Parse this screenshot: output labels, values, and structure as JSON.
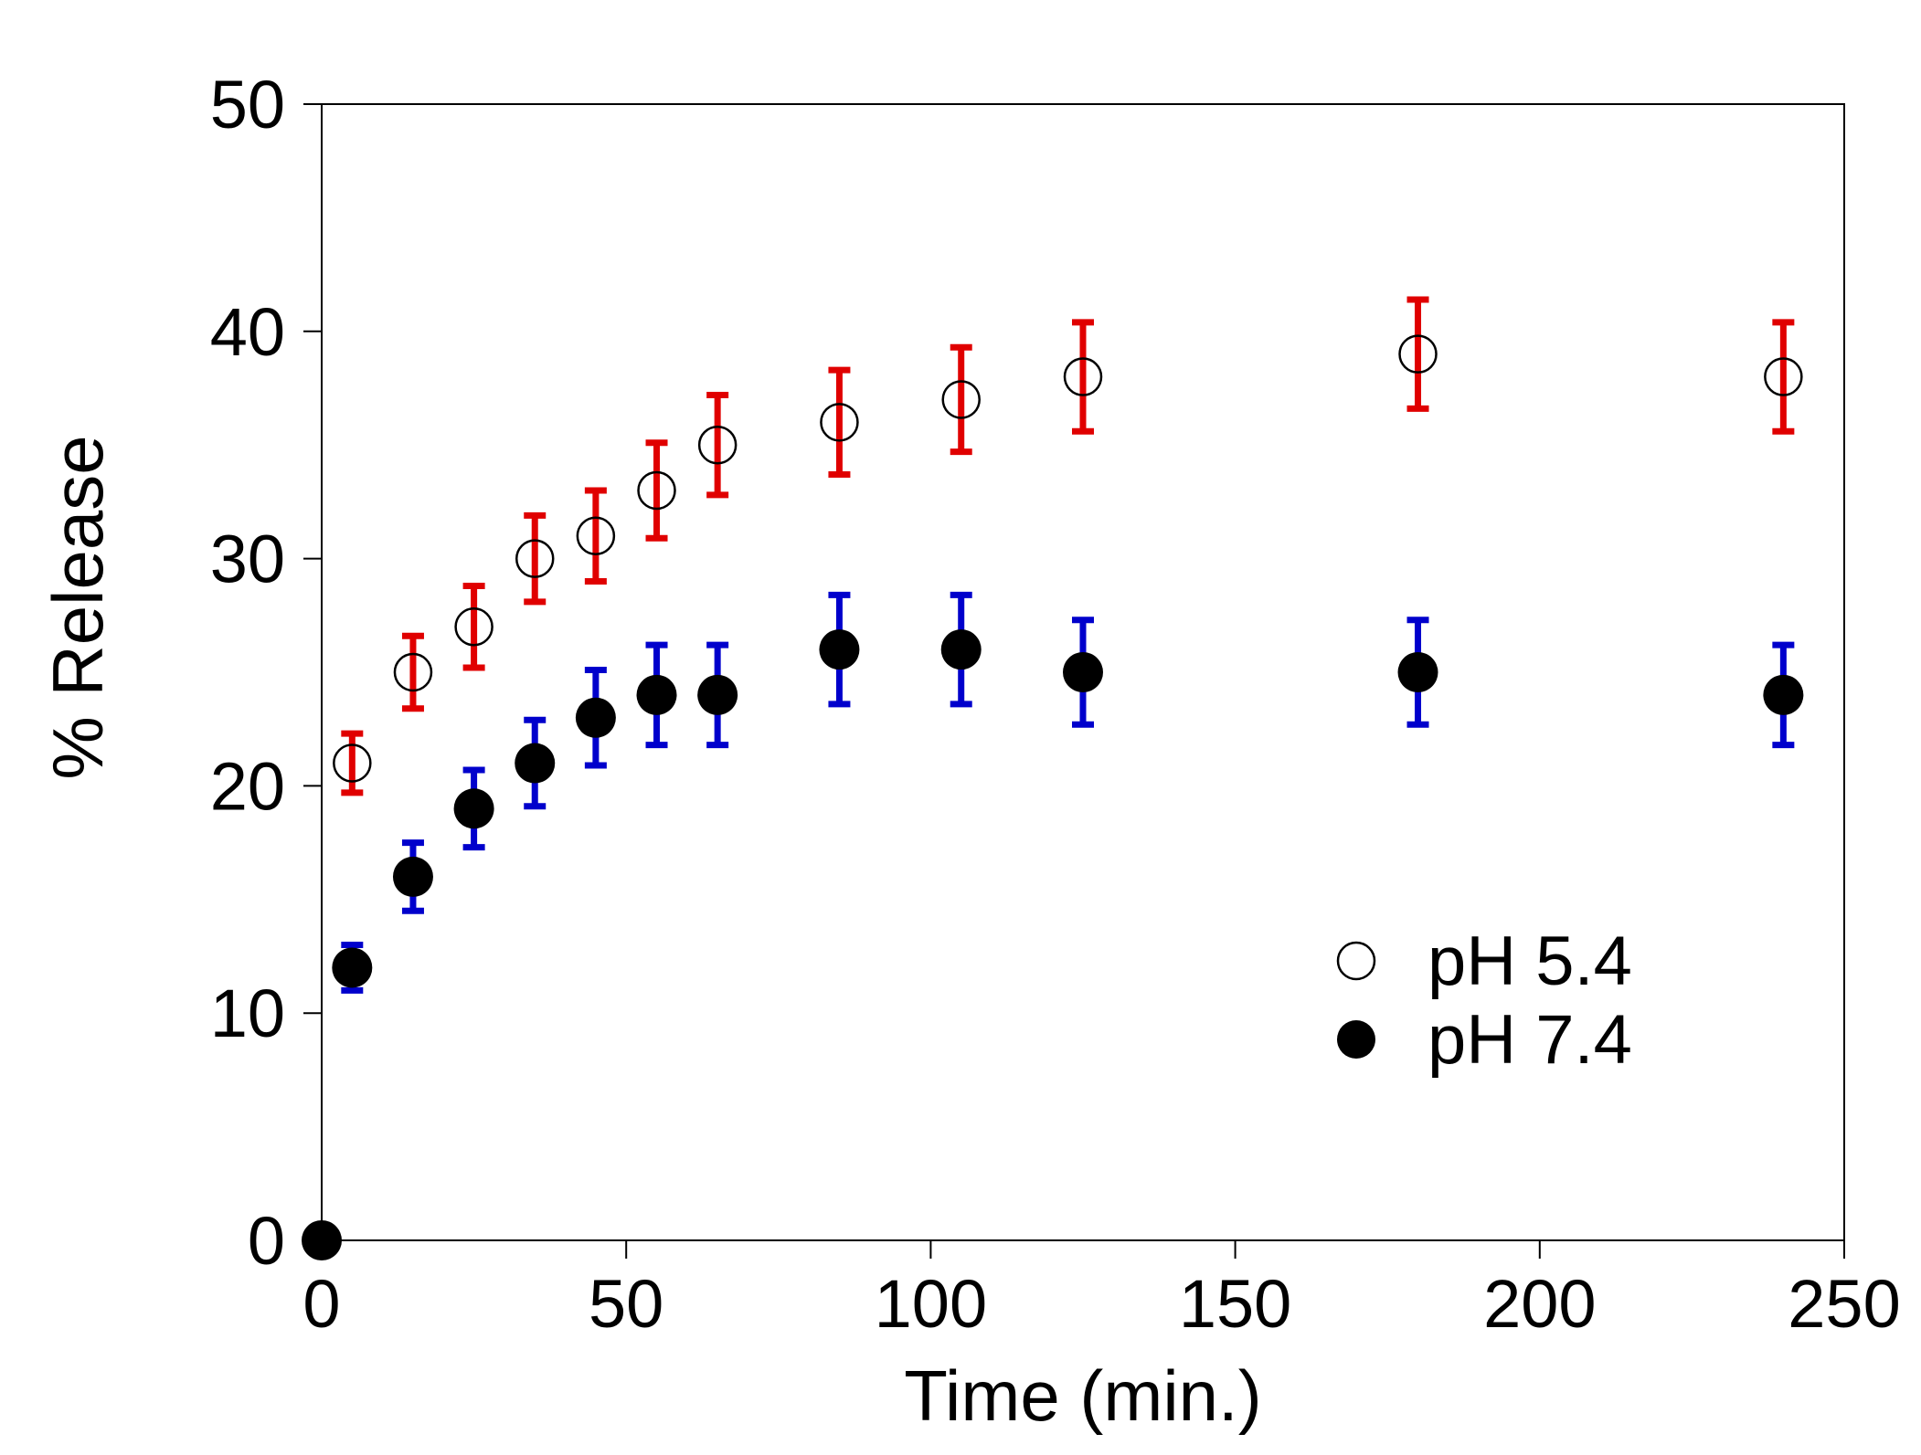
{
  "chart_data": {
    "type": "scatter",
    "title": "",
    "xlabel": "Time (min.)",
    "ylabel": "% Release",
    "xlim": [
      0,
      250
    ],
    "ylim": [
      0,
      50
    ],
    "xticks": [
      0,
      50,
      100,
      150,
      200,
      250
    ],
    "yticks": [
      0,
      10,
      20,
      30,
      40,
      50
    ],
    "legend_position": "bottom-right",
    "series": [
      {
        "name": "pH 5.4",
        "marker": "open-circle",
        "error_color": "#e00000",
        "points": [
          {
            "x": 5,
            "y": 21,
            "err": 1.3
          },
          {
            "x": 15,
            "y": 25,
            "err": 1.6
          },
          {
            "x": 25,
            "y": 27,
            "err": 1.8
          },
          {
            "x": 35,
            "y": 30,
            "err": 1.9
          },
          {
            "x": 45,
            "y": 31,
            "err": 2.0
          },
          {
            "x": 55,
            "y": 33,
            "err": 2.1
          },
          {
            "x": 65,
            "y": 35,
            "err": 2.2
          },
          {
            "x": 85,
            "y": 36,
            "err": 2.3
          },
          {
            "x": 105,
            "y": 37,
            "err": 2.3
          },
          {
            "x": 125,
            "y": 38,
            "err": 2.4
          },
          {
            "x": 180,
            "y": 39,
            "err": 2.4
          },
          {
            "x": 240,
            "y": 38,
            "err": 2.4
          }
        ]
      },
      {
        "name": "pH 7.4",
        "marker": "filled-circle",
        "error_color": "#0000cc",
        "points": [
          {
            "x": 0,
            "y": 0,
            "err": 0
          },
          {
            "x": 5,
            "y": 12,
            "err": 1.0
          },
          {
            "x": 15,
            "y": 16,
            "err": 1.5
          },
          {
            "x": 25,
            "y": 19,
            "err": 1.7
          },
          {
            "x": 35,
            "y": 21,
            "err": 1.9
          },
          {
            "x": 45,
            "y": 23,
            "err": 2.1
          },
          {
            "x": 55,
            "y": 24,
            "err": 2.2
          },
          {
            "x": 65,
            "y": 24,
            "err": 2.2
          },
          {
            "x": 85,
            "y": 26,
            "err": 2.4
          },
          {
            "x": 105,
            "y": 26,
            "err": 2.4
          },
          {
            "x": 125,
            "y": 25,
            "err": 2.3
          },
          {
            "x": 180,
            "y": 25,
            "err": 2.3
          },
          {
            "x": 240,
            "y": 24,
            "err": 2.2
          }
        ]
      }
    ]
  }
}
